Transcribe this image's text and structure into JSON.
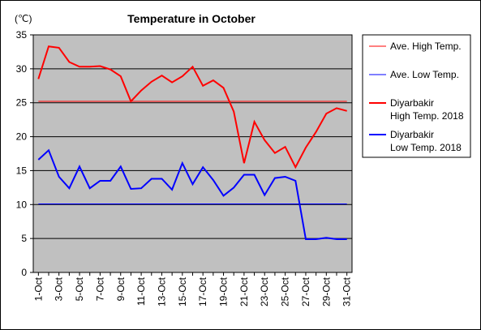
{
  "chart_data": {
    "type": "line",
    "title": "Temperature in October",
    "unit_label": "(℃)",
    "ylim": [
      0,
      35
    ],
    "yticks": [
      0,
      5,
      10,
      15,
      20,
      25,
      30,
      35
    ],
    "x": [
      1,
      2,
      3,
      4,
      5,
      6,
      7,
      8,
      9,
      10,
      11,
      12,
      13,
      14,
      15,
      16,
      17,
      18,
      19,
      20,
      21,
      22,
      23,
      24,
      25,
      26,
      27,
      28,
      29,
      30,
      31
    ],
    "xtick_labels": [
      "1-Oct",
      "3-Oct",
      "5-Oct",
      "7-Oct",
      "9-Oct",
      "11-Oct",
      "13-Oct",
      "15-Oct",
      "17-Oct",
      "19-Oct",
      "21-Oct",
      "23-Oct",
      "25-Oct",
      "27-Oct",
      "29-Oct",
      "31-Oct"
    ],
    "grid": true,
    "legend_position": "right",
    "plot_background": "#c0c0c0",
    "series": [
      {
        "name": "Ave. High Temp.",
        "color": "#ff0000",
        "width": 1,
        "constant": 25.2
      },
      {
        "name": "Ave. Low Temp.",
        "color": "#0000ff",
        "width": 1,
        "constant": 10.1
      },
      {
        "name": "Diyarbakir High Temp. 2018",
        "legend_lines": [
          "Diyarbakir",
          "High Temp. 2018"
        ],
        "color": "#ff0000",
        "width": 2,
        "values": [
          28.5,
          33.3,
          33.1,
          31.0,
          30.3,
          30.3,
          30.4,
          29.9,
          28.9,
          25.2,
          26.8,
          28.1,
          29.0,
          28.0,
          28.9,
          30.3,
          27.5,
          28.3,
          27.2,
          23.7,
          16.1,
          22.2,
          19.5,
          17.6,
          18.5,
          15.5,
          18.4,
          20.7,
          23.4,
          24.2,
          23.8
        ]
      },
      {
        "name": "Diyarbakir Low Temp. 2018",
        "legend_lines": [
          "Diyarbakir",
          "Low Temp. 2018"
        ],
        "color": "#0000ff",
        "width": 2,
        "values": [
          16.6,
          18.0,
          14.1,
          12.4,
          15.6,
          12.4,
          13.5,
          13.5,
          15.6,
          12.3,
          12.4,
          13.8,
          13.8,
          12.2,
          16.1,
          13.0,
          15.5,
          13.6,
          11.3,
          12.5,
          14.4,
          14.4,
          11.4,
          13.9,
          14.1,
          13.5,
          4.9,
          4.9,
          5.1,
          4.9,
          4.9
        ]
      }
    ]
  }
}
